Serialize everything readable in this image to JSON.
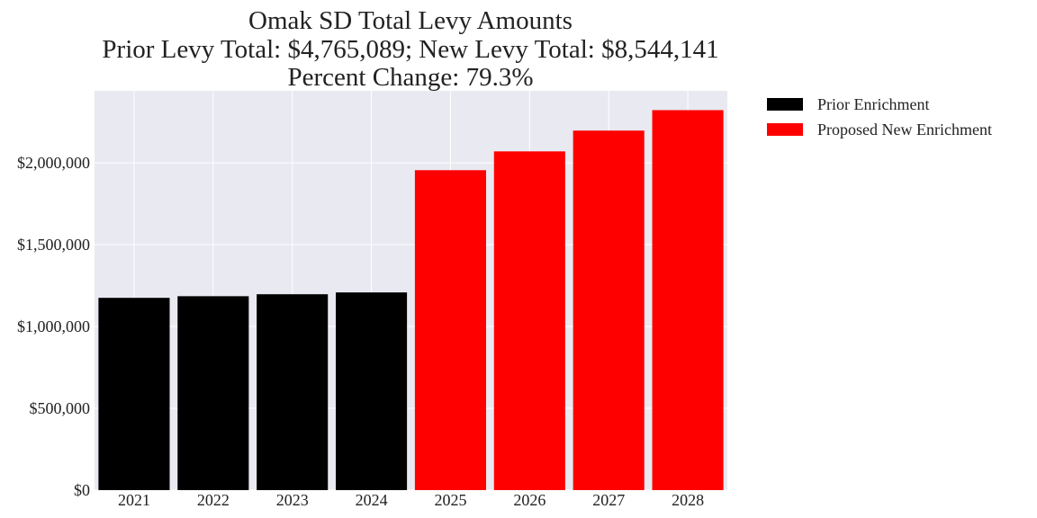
{
  "chart_data": {
    "type": "bar",
    "title_lines": [
      "Omak SD Total Levy Amounts",
      "Prior Levy Total:  $4,765,089; New Levy Total: $8,544,141",
      "Percent Change: 79.3%"
    ],
    "categories": [
      "2021",
      "2022",
      "2023",
      "2024",
      "2025",
      "2026",
      "2027",
      "2028"
    ],
    "series": [
      {
        "name": "Prior Enrichment",
        "color": "#000000",
        "values": [
          1175000,
          1185000,
          1197000,
          1208000,
          null,
          null,
          null,
          null
        ]
      },
      {
        "name": "Proposed New Enrichment",
        "color": "#ff0000",
        "values": [
          null,
          null,
          null,
          null,
          1955000,
          2070000,
          2197000,
          2322000
        ]
      }
    ],
    "ylim": [
      0,
      2440000
    ],
    "yticks": [
      0,
      500000,
      1000000,
      1500000,
      2000000
    ],
    "ytick_labels": [
      "$0",
      "$500,000",
      "$1,000,000",
      "$1,500,000",
      "$2,000,000"
    ],
    "xlabel": "",
    "ylabel": "",
    "grid": true,
    "legend_position": "outside-right-top",
    "plot_background": "#e9e9f1",
    "grid_color": "#ffffff"
  }
}
